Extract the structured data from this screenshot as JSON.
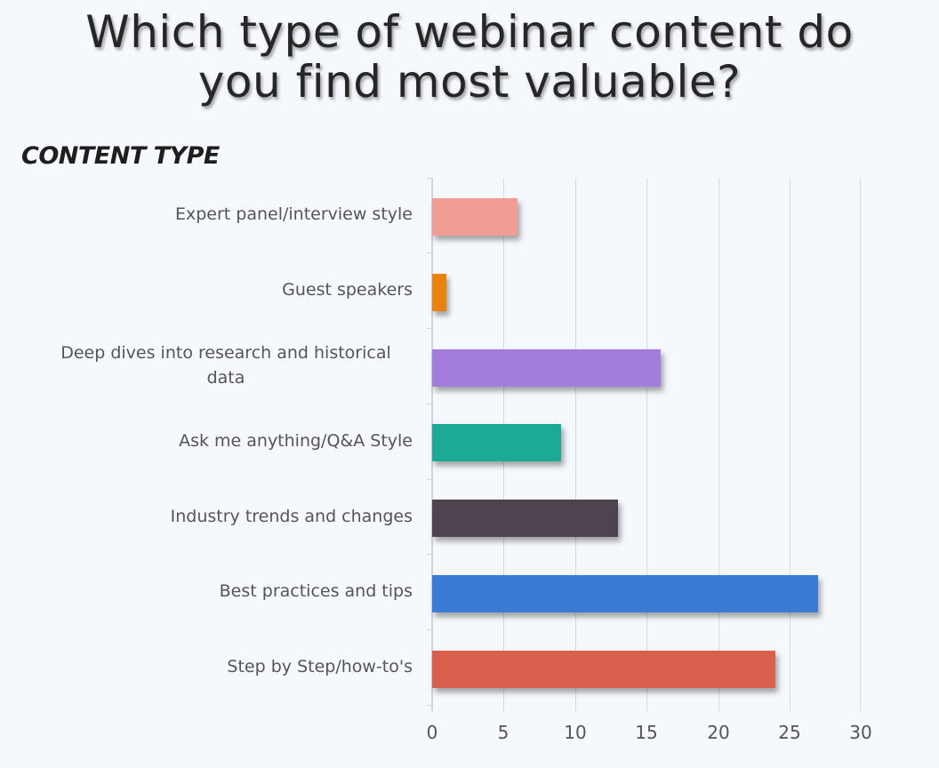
{
  "chart_data": {
    "type": "bar",
    "orientation": "horizontal",
    "title": "Which type of webinar content do you find most valuable?",
    "title_lines": [
      "Which type of webinar content do",
      "you find most valuable?"
    ],
    "ylabel": "CONTENT TYPE",
    "xlabel": "",
    "categories": [
      "Expert panel/interview style",
      "Guest speakers",
      "Deep dives into research and historical data",
      "Ask me anything/Q&A Style",
      "Industry trends and changes",
      "Best practices and tips",
      "Step by Step/how-to's"
    ],
    "values": [
      6,
      1,
      16,
      9,
      13,
      27,
      24
    ],
    "colors": [
      "#f09e93",
      "#ea8210",
      "#a47ddc",
      "#1ca996",
      "#4d4450",
      "#3a7bd5",
      "#d8604c"
    ],
    "xlim": [
      0,
      30
    ],
    "xticks": [
      "0",
      "5",
      "10",
      "15",
      "20",
      "25",
      "30"
    ],
    "grid": "vertical",
    "legend": "none"
  }
}
